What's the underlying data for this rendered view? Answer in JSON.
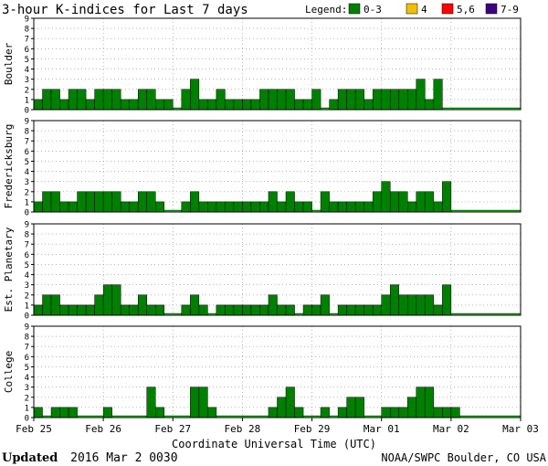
{
  "title": "3-hour K-indices for Last 7 days",
  "legend": {
    "label": "Legend:",
    "items": [
      {
        "label": "0-3",
        "color": "#008000"
      },
      {
        "label": "4",
        "color": "#f0c000"
      },
      {
        "label": "5,6",
        "color": "#ff0000"
      },
      {
        "label": "7-9",
        "color": "#400080"
      }
    ]
  },
  "footer": {
    "updated_label": "Updated",
    "updated_value": "2016 Mar  2 0030",
    "source": "NOAA/SWPC Boulder, CO USA"
  },
  "chart_data": {
    "type": "bar",
    "xlabel": "Coordinate Universal Time (UTC)",
    "x_tick_labels": [
      "Feb 25",
      "Feb 26",
      "Feb 27",
      "Feb 28",
      "Feb 29",
      "Mar 01",
      "Mar 02",
      "Mar 03"
    ],
    "y_ticks": [
      "0",
      "1",
      "2",
      "3",
      "4",
      "5",
      "6",
      "7",
      "8",
      "9"
    ],
    "ylim": [
      0,
      9
    ],
    "intervals_per_day": 8,
    "grid": "dotted",
    "panels": [
      {
        "ylabel": "Boulder",
        "values": [
          1,
          2,
          2,
          1,
          2,
          2,
          1,
          2,
          2,
          2,
          1,
          1,
          2,
          2,
          1,
          1,
          0,
          2,
          3,
          1,
          1,
          2,
          1,
          1,
          1,
          1,
          2,
          2,
          2,
          2,
          1,
          1,
          2,
          0,
          1,
          2,
          2,
          2,
          1,
          2,
          2,
          2,
          2,
          2,
          3,
          1,
          3
        ]
      },
      {
        "ylabel": "Fredericksburg",
        "values": [
          1,
          2,
          2,
          1,
          1,
          2,
          2,
          2,
          2,
          2,
          1,
          1,
          2,
          2,
          1,
          0,
          0,
          1,
          2,
          1,
          1,
          1,
          1,
          1,
          1,
          1,
          1,
          2,
          1,
          2,
          1,
          1,
          0,
          2,
          1,
          1,
          1,
          1,
          1,
          2,
          3,
          2,
          2,
          1,
          2,
          2,
          1,
          3
        ]
      },
      {
        "ylabel": "Est. Planetary",
        "values": [
          1,
          2,
          2,
          1,
          1,
          1,
          1,
          2,
          3,
          3,
          1,
          1,
          2,
          1,
          1,
          0,
          0,
          1,
          2,
          1,
          0,
          1,
          1,
          1,
          1,
          1,
          1,
          2,
          1,
          1,
          0,
          1,
          1,
          2,
          0,
          1,
          1,
          1,
          1,
          1,
          2,
          3,
          2,
          2,
          2,
          2,
          1,
          3
        ]
      },
      {
        "ylabel": "College",
        "values": [
          1,
          0,
          1,
          1,
          1,
          0,
          0,
          0,
          1,
          0,
          0,
          0,
          0,
          3,
          1,
          0,
          0,
          0,
          3,
          3,
          1,
          0,
          0,
          0,
          0,
          0,
          0,
          1,
          2,
          3,
          1,
          0,
          0,
          1,
          0,
          1,
          2,
          2,
          0,
          0,
          1,
          1,
          1,
          2,
          3,
          3,
          1,
          1,
          1
        ]
      }
    ]
  }
}
